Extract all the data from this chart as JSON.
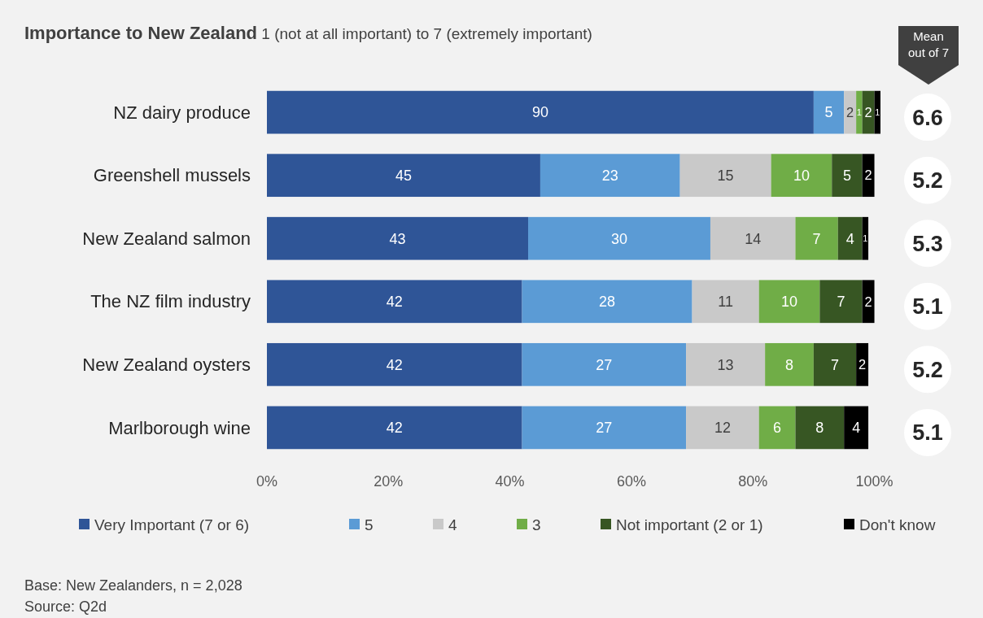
{
  "chart_data": {
    "type": "bar",
    "orientation": "horizontal",
    "stacked": true,
    "title": "Importance to New Zealand",
    "subtitle": "1 (not at all important) to 7 (extremely important)",
    "categories": [
      "NZ dairy produce",
      "Greenshell mussels",
      "New Zealand salmon",
      "The NZ film industry",
      "New Zealand oysters",
      "Marlborough wine"
    ],
    "series": [
      {
        "name": "Very Important (7 or 6)",
        "color": "#2f5597",
        "values": [
          90,
          45,
          43,
          42,
          42,
          42
        ]
      },
      {
        "name": "5",
        "color": "#5b9bd5",
        "values": [
          5,
          23,
          30,
          28,
          27,
          27
        ]
      },
      {
        "name": "4",
        "color": "#c9c9c9",
        "values": [
          2,
          15,
          14,
          11,
          13,
          12
        ]
      },
      {
        "name": "3",
        "color": "#70ad47",
        "values": [
          1,
          10,
          7,
          10,
          8,
          6
        ]
      },
      {
        "name": "Not important (2 or 1)",
        "color": "#375623",
        "values": [
          2,
          5,
          4,
          7,
          7,
          8
        ]
      },
      {
        "name": "Don't know",
        "color": "#000000",
        "values": [
          1,
          2,
          1,
          2,
          2,
          4
        ]
      }
    ],
    "xlim": [
      0,
      101
    ],
    "xticks": [
      {
        "value": 0,
        "label": "0%"
      },
      {
        "value": 20,
        "label": "20%"
      },
      {
        "value": 40,
        "label": "40%"
      },
      {
        "value": 60,
        "label": "60%"
      },
      {
        "value": 80,
        "label": "80%"
      },
      {
        "value": 100,
        "label": "100%"
      }
    ],
    "data_labels": true,
    "legend": "bottom",
    "grid": false,
    "annotations": [
      "Mean out of 7",
      "6.6",
      "5.2",
      "5.3",
      "5.1",
      "5.2",
      "5.1",
      "Base: New Zealanders, n = 2,028",
      "Source: Q2d"
    ]
  }
}
